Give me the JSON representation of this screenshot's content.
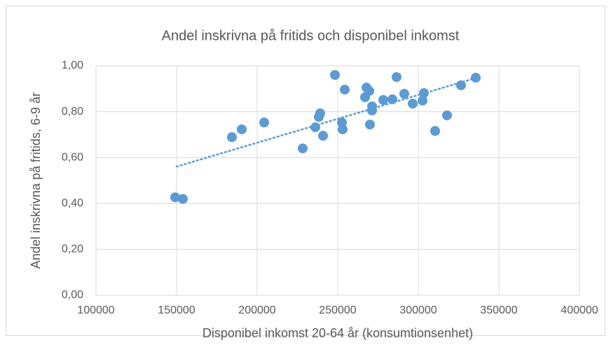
{
  "chart_data": {
    "type": "scatter",
    "title": "Andel inskrivna på fritids och disponibel inkomst",
    "xlabel": "Disponibel inkomst 20-64 år (konsumtionsenhet)",
    "ylabel": "Andel inskrivna på fritids, 6-9 år",
    "series": [
      {
        "name": "Andel",
        "color": "#5b9bd5",
        "x": [
          149130,
          153900,
          184350,
          190430,
          204350,
          228260,
          236090,
          238260,
          239130,
          240870,
          248260,
          252610,
          253040,
          254350,
          266960,
          267830,
          269570,
          270000,
          271300,
          271300,
          278260,
          283910,
          286520,
          291300,
          296520,
          302610,
          303480,
          310430,
          317830,
          326520,
          335650
        ],
        "values": [
          0.427,
          0.42,
          0.689,
          0.723,
          0.753,
          0.64,
          0.732,
          0.777,
          0.793,
          0.695,
          0.96,
          0.753,
          0.723,
          0.896,
          0.863,
          0.905,
          0.89,
          0.744,
          0.823,
          0.805,
          0.851,
          0.854,
          0.951,
          0.878,
          0.835,
          0.848,
          0.881,
          0.716,
          0.784,
          0.915,
          0.948
        ]
      }
    ],
    "trendline": {
      "color": "#5b9bd5",
      "x": [
        150000,
        334800
      ],
      "y": [
        0.561,
        0.945
      ]
    },
    "xlim": [
      100000,
      400000
    ],
    "xticks": [
      100000,
      150000,
      200000,
      250000,
      300000,
      350000,
      400000
    ],
    "ylim": [
      0,
      1
    ],
    "yticks": [
      {
        "value": 0,
        "label": "0,00"
      },
      {
        "value": 0.2,
        "label": "0,20"
      },
      {
        "value": 0.4,
        "label": "0,40"
      },
      {
        "value": 0.6,
        "label": "0,60"
      },
      {
        "value": 0.8,
        "label": "0,80"
      },
      {
        "value": 1,
        "label": "1,00"
      }
    ],
    "grid": true
  }
}
